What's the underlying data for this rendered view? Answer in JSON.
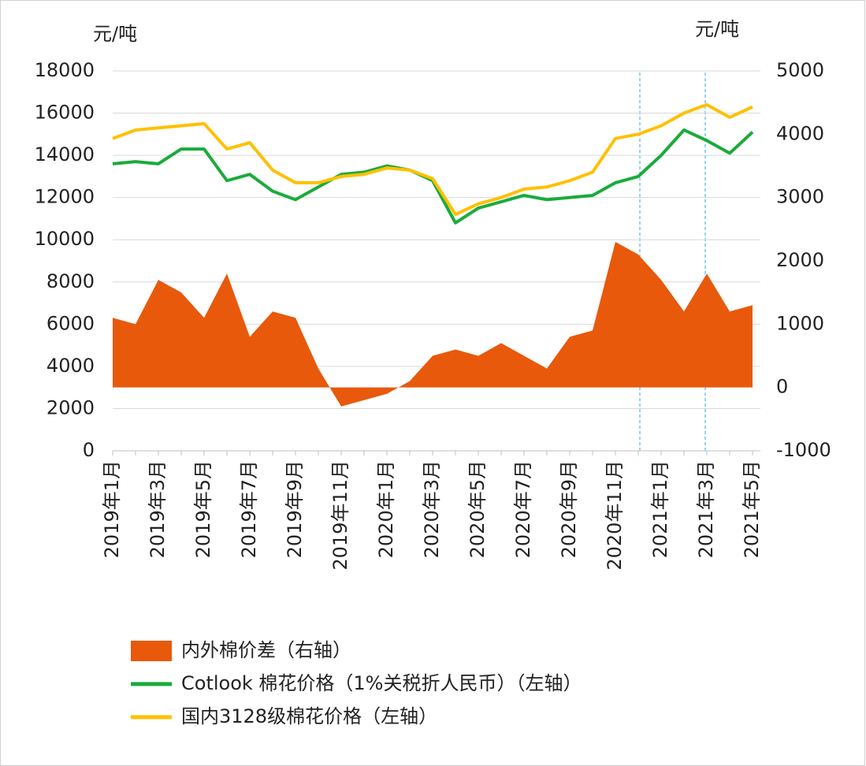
{
  "chart_data": {
    "type": "line",
    "y_label": "元/吨",
    "y2_label": "元/吨",
    "categories": [
      "2019年1月",
      null,
      "2019年3月",
      null,
      "2019年5月",
      null,
      "2019年7月",
      null,
      "2019年9月",
      null,
      "2019年11月",
      null,
      "2020年1月",
      null,
      "2020年3月",
      null,
      "2020年5月",
      null,
      "2020年7月",
      null,
      "2020年9月",
      null,
      "2020年11月",
      null,
      "2021年1月",
      null,
      "2021年3月",
      null,
      "2021年5月"
    ],
    "series": [
      {
        "name": "内外棉价差（右轴）",
        "kind": "area",
        "axis": "y2",
        "color": "#e8590c",
        "values": [
          1100,
          1000,
          1700,
          1500,
          1100,
          1800,
          800,
          1200,
          1100,
          300,
          -300,
          -200,
          -100,
          100,
          500,
          600,
          500,
          700,
          500,
          300,
          800,
          900,
          2300,
          2100,
          1700,
          1200,
          1800,
          1200,
          1300
        ]
      },
      {
        "name": "Cotlook 棉花价格（1%关税折人民币）（左轴）",
        "kind": "line",
        "color": "#1aab3c",
        "values": [
          13600,
          13700,
          13600,
          14300,
          14300,
          12800,
          13100,
          12300,
          11900,
          12500,
          13100,
          13200,
          13500,
          13300,
          12800,
          10800,
          11500,
          11800,
          12100,
          11900,
          12000,
          12100,
          12700,
          13000,
          14000,
          15200,
          14700,
          14100,
          15100
        ]
      },
      {
        "name": "国内3128级棉花价格（左轴）",
        "kind": "line",
        "color": "#ffc000",
        "values": [
          14800,
          15200,
          15300,
          15400,
          15500,
          14300,
          14600,
          13300,
          12700,
          12700,
          13000,
          13100,
          13400,
          13300,
          12900,
          11200,
          11700,
          12000,
          12400,
          12500,
          12800,
          13200,
          14800,
          15000,
          15400,
          16000,
          16400,
          15800,
          16300
        ]
      }
    ],
    "ylim": [
      0,
      18000
    ],
    "yticks": [
      0,
      2000,
      4000,
      6000,
      8000,
      10000,
      12000,
      14000,
      16000,
      18000
    ],
    "y2lim": [
      -1000,
      5000
    ],
    "y2ticks": [
      -1000,
      0,
      1000,
      2000,
      3000,
      4000,
      5000
    ],
    "grid": true
  }
}
